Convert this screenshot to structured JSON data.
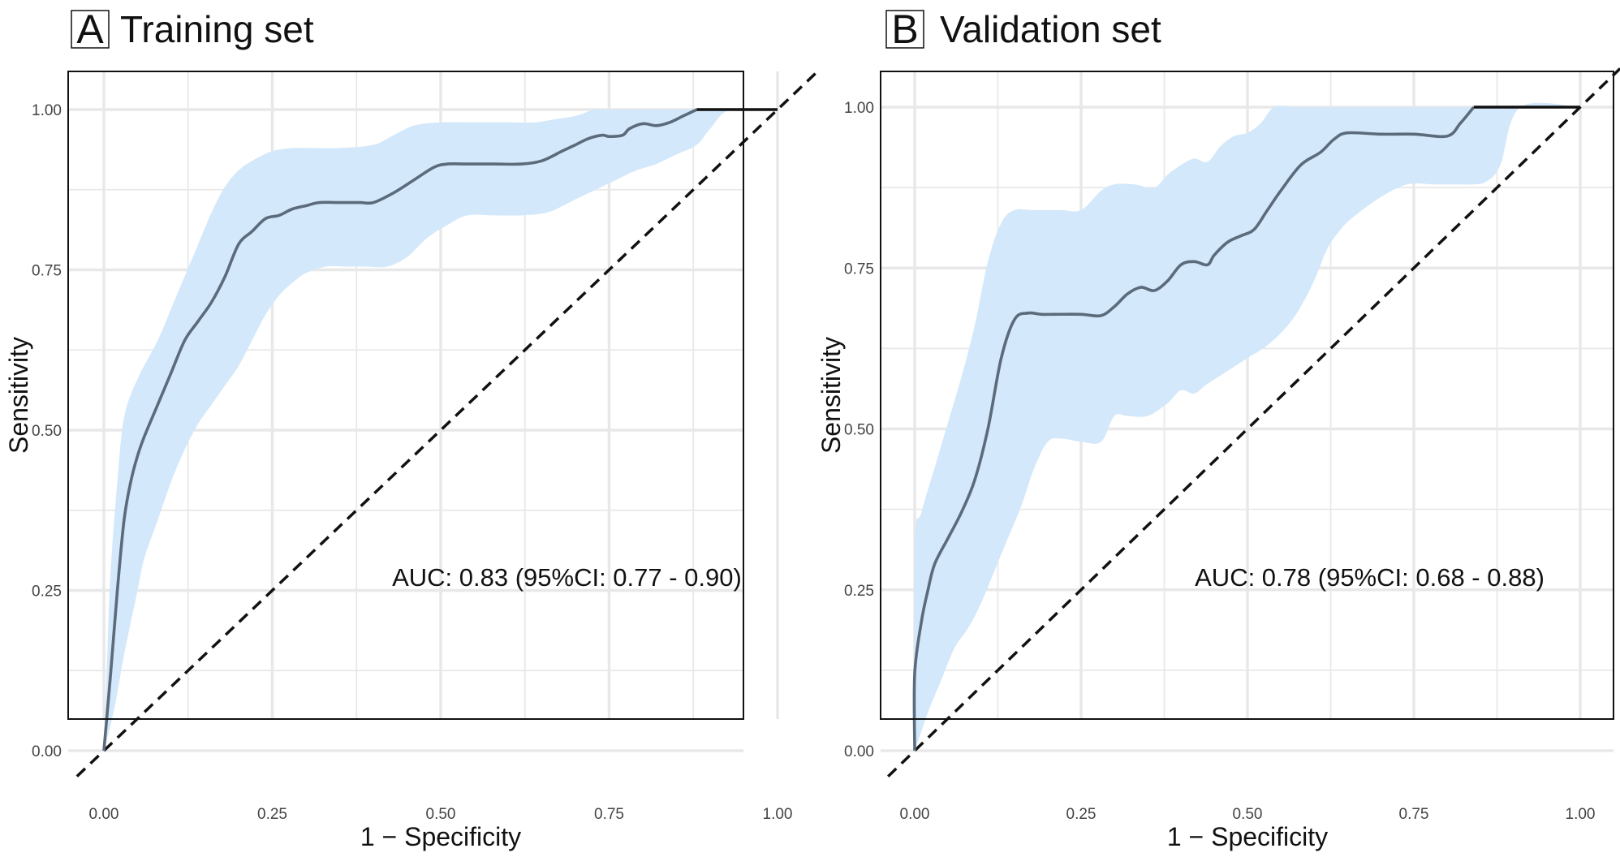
{
  "chart_data": [
    {
      "type": "line",
      "panel_label": "A",
      "title": "Training set",
      "xlabel": "1 − Specificity",
      "ylabel": "Sensitivity",
      "xlim": [
        0,
        1
      ],
      "ylim": [
        0,
        1
      ],
      "ticks": [
        "0.00",
        "0.25",
        "0.50",
        "0.75",
        "1.00"
      ],
      "tick_values": [
        0,
        0.25,
        0.5,
        0.75,
        1
      ],
      "grid": true,
      "annotation": "AUC: 0.83 (95%CI: 0.77 - 0.90)",
      "roc_curve": {
        "name": "ROC",
        "x": [
          0,
          0.01,
          0.02,
          0.03,
          0.04,
          0.05,
          0.06,
          0.08,
          0.1,
          0.12,
          0.14,
          0.16,
          0.18,
          0.2,
          0.22,
          0.24,
          0.26,
          0.28,
          0.3,
          0.32,
          0.35,
          0.38,
          0.4,
          0.43,
          0.46,
          0.49,
          0.51,
          0.54,
          0.58,
          0.62,
          0.65,
          0.68,
          0.7,
          0.72,
          0.74,
          0.75,
          0.77,
          0.78,
          0.8,
          0.82,
          0.84,
          0.86,
          0.88,
          0.9,
          0.95,
          1.0
        ],
        "y": [
          0,
          0.12,
          0.25,
          0.36,
          0.42,
          0.46,
          0.49,
          0.54,
          0.59,
          0.64,
          0.67,
          0.7,
          0.74,
          0.79,
          0.81,
          0.83,
          0.835,
          0.845,
          0.85,
          0.855,
          0.855,
          0.855,
          0.855,
          0.87,
          0.89,
          0.91,
          0.915,
          0.915,
          0.915,
          0.915,
          0.92,
          0.935,
          0.945,
          0.955,
          0.96,
          0.958,
          0.96,
          0.97,
          0.978,
          0.975,
          0.98,
          0.99,
          1.0,
          1.0,
          1.0,
          1.0
        ]
      },
      "ci_upper": {
        "x": [
          0,
          0.005,
          0.01,
          0.02,
          0.03,
          0.05,
          0.08,
          0.1,
          0.12,
          0.14,
          0.16,
          0.18,
          0.2,
          0.22,
          0.25,
          0.28,
          0.3,
          0.35,
          0.4,
          0.43,
          0.46,
          0.5,
          0.55,
          0.6,
          0.64,
          0.67,
          0.7,
          0.73,
          0.76,
          0.79,
          0.82,
          0.85,
          0.88,
          0.93,
          1.0
        ],
        "y": [
          0,
          0.15,
          0.28,
          0.42,
          0.52,
          0.58,
          0.64,
          0.69,
          0.74,
          0.79,
          0.84,
          0.88,
          0.905,
          0.92,
          0.935,
          0.94,
          0.94,
          0.94,
          0.945,
          0.96,
          0.975,
          0.98,
          0.98,
          0.98,
          0.98,
          0.985,
          0.99,
          1.0,
          1.0,
          1.0,
          1.0,
          1.0,
          1.0,
          1.0,
          1.0
        ]
      },
      "ci_lower": {
        "x": [
          0,
          0.01,
          0.02,
          0.03,
          0.05,
          0.06,
          0.08,
          0.1,
          0.12,
          0.14,
          0.16,
          0.18,
          0.2,
          0.22,
          0.24,
          0.26,
          0.28,
          0.3,
          0.33,
          0.36,
          0.39,
          0.42,
          0.45,
          0.48,
          0.51,
          0.54,
          0.58,
          0.62,
          0.66,
          0.7,
          0.73,
          0.76,
          0.79,
          0.82,
          0.85,
          0.88,
          0.9,
          0.93,
          1.0
        ],
        "y": [
          0,
          0.04,
          0.09,
          0.15,
          0.25,
          0.3,
          0.36,
          0.42,
          0.47,
          0.51,
          0.54,
          0.57,
          0.6,
          0.64,
          0.68,
          0.71,
          0.73,
          0.745,
          0.755,
          0.755,
          0.755,
          0.755,
          0.77,
          0.8,
          0.82,
          0.835,
          0.835,
          0.835,
          0.84,
          0.86,
          0.875,
          0.89,
          0.905,
          0.915,
          0.93,
          0.945,
          0.97,
          1.0,
          1.0
        ]
      }
    },
    {
      "type": "line",
      "panel_label": "B",
      "title": "Validation set",
      "xlabel": "1 − Specificity",
      "ylabel": "Sensitivity",
      "xlim": [
        0,
        1
      ],
      "ylim": [
        0,
        1
      ],
      "ticks": [
        "0.00",
        "0.25",
        "0.50",
        "0.75",
        "1.00"
      ],
      "tick_values": [
        0,
        0.25,
        0.5,
        0.75,
        1
      ],
      "grid": true,
      "annotation": "AUC: 0.78 (95%CI: 0.68 - 0.88)",
      "roc_curve": {
        "name": "ROC",
        "x": [
          0,
          0.0,
          0.01,
          0.02,
          0.03,
          0.05,
          0.07,
          0.09,
          0.11,
          0.13,
          0.15,
          0.17,
          0.19,
          0.21,
          0.25,
          0.28,
          0.3,
          0.32,
          0.34,
          0.36,
          0.38,
          0.4,
          0.42,
          0.44,
          0.45,
          0.47,
          0.49,
          0.51,
          0.53,
          0.55,
          0.58,
          0.61,
          0.63,
          0.65,
          0.7,
          0.75,
          0.8,
          0.82,
          0.84,
          0.86,
          0.9,
          1.0
        ],
        "y": [
          0,
          0.12,
          0.2,
          0.25,
          0.29,
          0.33,
          0.37,
          0.42,
          0.5,
          0.61,
          0.67,
          0.68,
          0.678,
          0.678,
          0.678,
          0.676,
          0.69,
          0.71,
          0.72,
          0.715,
          0.73,
          0.755,
          0.76,
          0.755,
          0.77,
          0.79,
          0.8,
          0.81,
          0.84,
          0.87,
          0.91,
          0.93,
          0.95,
          0.96,
          0.958,
          0.958,
          0.955,
          0.975,
          1.0,
          1.0,
          1.0,
          1.0
        ]
      },
      "ci_upper": {
        "x": [
          0,
          0.0,
          0.01,
          0.03,
          0.05,
          0.07,
          0.09,
          0.11,
          0.13,
          0.15,
          0.18,
          0.22,
          0.25,
          0.28,
          0.3,
          0.33,
          0.36,
          0.38,
          0.4,
          0.42,
          0.44,
          0.46,
          0.48,
          0.5,
          0.52,
          0.54,
          0.57,
          0.6,
          0.65,
          0.7,
          0.75,
          0.8,
          0.85,
          0.9,
          1.0
        ],
        "y": [
          0,
          0.32,
          0.37,
          0.44,
          0.51,
          0.58,
          0.66,
          0.76,
          0.82,
          0.84,
          0.84,
          0.84,
          0.84,
          0.87,
          0.88,
          0.88,
          0.875,
          0.895,
          0.91,
          0.92,
          0.915,
          0.94,
          0.955,
          0.96,
          0.975,
          1.0,
          1.0,
          1.0,
          1.0,
          1.0,
          1.0,
          1.0,
          1.0,
          1.0,
          1.0
        ]
      },
      "ci_lower": {
        "x": [
          0,
          0.01,
          0.02,
          0.04,
          0.06,
          0.08,
          0.1,
          0.12,
          0.14,
          0.16,
          0.18,
          0.2,
          0.22,
          0.25,
          0.28,
          0.3,
          0.32,
          0.35,
          0.38,
          0.4,
          0.42,
          0.44,
          0.47,
          0.5,
          0.53,
          0.56,
          0.58,
          0.6,
          0.62,
          0.64,
          0.66,
          0.7,
          0.74,
          0.78,
          0.82,
          0.84,
          0.86,
          0.88,
          0.91,
          1.0
        ],
        "y": [
          0,
          0.03,
          0.06,
          0.11,
          0.16,
          0.19,
          0.23,
          0.28,
          0.33,
          0.38,
          0.44,
          0.48,
          0.485,
          0.48,
          0.48,
          0.52,
          0.52,
          0.52,
          0.54,
          0.56,
          0.555,
          0.57,
          0.59,
          0.61,
          0.63,
          0.66,
          0.69,
          0.73,
          0.78,
          0.81,
          0.83,
          0.86,
          0.88,
          0.88,
          0.88,
          0.88,
          0.885,
          0.91,
          1.0,
          1.0
        ]
      }
    }
  ],
  "colors": {
    "ci_band": "#d3e8fa",
    "roc_line": "#5b6b7b",
    "diagonal": "#111111",
    "grid": "#e8e8e8"
  }
}
